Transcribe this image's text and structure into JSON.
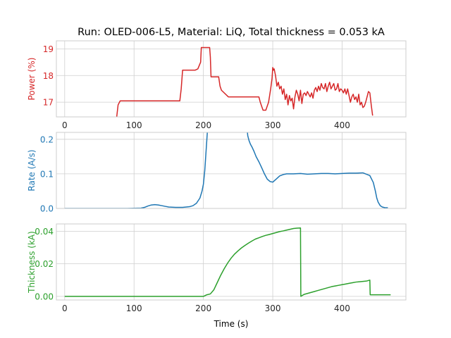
{
  "figure": {
    "title": "Run: OLED-006-L5, Material: LiQ, Total thickness = 0.053 kA",
    "xlabel": "Time (s)"
  },
  "chart_data": [
    {
      "type": "line",
      "name": "power",
      "ylabel": "Power (%)",
      "color": "#d62728",
      "xlim": [
        -12,
        492
      ],
      "ylim": [
        16.45,
        19.3
      ],
      "xticks": [
        0,
        100,
        200,
        300,
        400
      ],
      "xtick_labels": [
        "0",
        "100",
        "200",
        "300",
        "400"
      ],
      "yticks": [
        17,
        18,
        19
      ],
      "ytick_labels": [
        "17",
        "18",
        "19"
      ],
      "grid": true,
      "x": [
        75,
        77,
        80,
        120,
        166,
        168,
        170,
        188,
        192,
        196,
        197,
        209,
        210,
        211,
        222,
        224,
        226,
        236,
        268,
        280,
        282,
        284,
        286,
        290,
        294,
        297,
        299,
        300,
        301,
        302,
        304,
        306,
        308,
        310,
        312,
        314,
        316,
        318,
        320,
        322,
        324,
        326,
        328,
        330,
        332,
        334,
        336,
        338,
        340,
        342,
        344,
        346,
        348,
        350,
        352,
        354,
        356,
        358,
        360,
        362,
        364,
        366,
        368,
        370,
        372,
        374,
        376,
        378,
        380,
        382,
        384,
        386,
        388,
        390,
        392,
        394,
        396,
        398,
        400,
        402,
        404,
        406,
        408,
        410,
        412,
        414,
        416,
        418,
        420,
        422,
        424,
        426,
        428,
        430,
        432,
        434,
        436,
        438,
        440,
        442,
        444
      ],
      "y": [
        16.45,
        16.9,
        17.05,
        17.05,
        17.05,
        17.5,
        18.2,
        18.2,
        18.25,
        18.5,
        19.05,
        19.05,
        18.7,
        17.95,
        17.95,
        17.6,
        17.45,
        17.2,
        17.2,
        17.2,
        17.0,
        16.85,
        16.7,
        16.7,
        17.0,
        17.5,
        17.9,
        18.3,
        18.2,
        18.25,
        18.0,
        17.6,
        17.75,
        17.5,
        17.6,
        17.3,
        17.5,
        17.1,
        17.3,
        16.9,
        17.25,
        17.05,
        17.15,
        16.75,
        17.2,
        17.45,
        17.3,
        17.05,
        17.45,
        16.95,
        17.3,
        17.35,
        17.25,
        17.4,
        17.3,
        17.2,
        17.35,
        17.15,
        17.45,
        17.55,
        17.4,
        17.6,
        17.45,
        17.7,
        17.55,
        17.5,
        17.7,
        17.4,
        17.6,
        17.75,
        17.5,
        17.6,
        17.7,
        17.45,
        17.5,
        17.7,
        17.4,
        17.5,
        17.45,
        17.35,
        17.5,
        17.3,
        17.5,
        17.25,
        17.0,
        17.2,
        17.3,
        17.1,
        17.2,
        17.0,
        17.3,
        16.9,
        17.0,
        16.8,
        16.85,
        17.0,
        17.2,
        17.4,
        17.35,
        16.9,
        16.5
      ]
    },
    {
      "type": "line",
      "name": "rate",
      "ylabel": "Rate (A/s)",
      "color": "#1f77b4",
      "xlim": [
        -12,
        492
      ],
      "ylim": [
        0,
        0.22
      ],
      "xticks": [
        0,
        100,
        200,
        300,
        400
      ],
      "xtick_labels": [
        "0",
        "100",
        "200",
        "300",
        "400"
      ],
      "yticks": [
        0,
        0.1,
        0.2
      ],
      "ytick_labels": [
        "0.0",
        "0.1",
        "0.2"
      ],
      "grid": true,
      "x": [
        0,
        30,
        60,
        90,
        110,
        115,
        120,
        125,
        130,
        135,
        140,
        145,
        150,
        160,
        170,
        180,
        185,
        190,
        195,
        198,
        200,
        201,
        202,
        203,
        204,
        205,
        206,
        207,
        262,
        263,
        264,
        266,
        268,
        270,
        273,
        276,
        280,
        284,
        288,
        292,
        296,
        300,
        305,
        310,
        315,
        320,
        330,
        340,
        350,
        360,
        370,
        380,
        390,
        400,
        410,
        420,
        430,
        440,
        445,
        448,
        450,
        452,
        455,
        458,
        462,
        466
      ],
      "y": [
        0.0,
        0.0,
        0.0,
        0.0,
        0.001,
        0.003,
        0.007,
        0.01,
        0.011,
        0.01,
        0.008,
        0.006,
        0.004,
        0.003,
        0.003,
        0.005,
        0.008,
        0.015,
        0.03,
        0.05,
        0.07,
        0.09,
        0.11,
        0.14,
        0.17,
        0.2,
        0.23,
        0.26,
        0.26,
        0.23,
        0.21,
        0.195,
        0.185,
        0.178,
        0.165,
        0.15,
        0.135,
        0.118,
        0.1,
        0.085,
        0.078,
        0.076,
        0.085,
        0.094,
        0.098,
        0.1,
        0.1,
        0.101,
        0.099,
        0.1,
        0.101,
        0.101,
        0.1,
        0.101,
        0.102,
        0.102,
        0.103,
        0.095,
        0.075,
        0.05,
        0.03,
        0.018,
        0.008,
        0.004,
        0.002,
        0.002
      ]
    },
    {
      "type": "line",
      "name": "thickness",
      "ylabel": "Thickness (kA)",
      "color": "#2ca02c",
      "xlim": [
        -12,
        492
      ],
      "ylim": [
        -0.0022,
        0.0445
      ],
      "xticks": [
        0,
        100,
        200,
        300,
        400
      ],
      "xtick_labels": [
        "0",
        "100",
        "200",
        "300",
        "400"
      ],
      "yticks": [
        0,
        0.02,
        0.04
      ],
      "ytick_labels": [
        "0.00",
        "0.02",
        "0.04"
      ],
      "grid": true,
      "x": [
        0,
        100,
        200,
        205,
        210,
        215,
        220,
        225,
        230,
        235,
        240,
        245,
        250,
        255,
        260,
        265,
        270,
        275,
        280,
        285,
        290,
        295,
        300,
        305,
        310,
        315,
        320,
        325,
        330,
        335,
        340,
        340.5,
        345,
        350,
        355,
        360,
        365,
        370,
        375,
        380,
        385,
        390,
        395,
        400,
        405,
        410,
        415,
        420,
        425,
        430,
        435,
        440,
        440.5,
        470
      ],
      "y": [
        0.0,
        0.0,
        0.0,
        0.001,
        0.0015,
        0.004,
        0.0085,
        0.013,
        0.017,
        0.0205,
        0.0235,
        0.026,
        0.028,
        0.0298,
        0.0313,
        0.0327,
        0.034,
        0.0352,
        0.036,
        0.0368,
        0.0375,
        0.038,
        0.0386,
        0.0392,
        0.0398,
        0.0402,
        0.0407,
        0.0412,
        0.0417,
        0.0419,
        0.042,
        0.0,
        0.0012,
        0.0018,
        0.0024,
        0.003,
        0.0036,
        0.0042,
        0.0048,
        0.0054,
        0.006,
        0.0064,
        0.0068,
        0.0072,
        0.0076,
        0.008,
        0.0084,
        0.0088,
        0.009,
        0.0092,
        0.0094,
        0.01,
        0.001,
        0.001
      ]
    }
  ]
}
